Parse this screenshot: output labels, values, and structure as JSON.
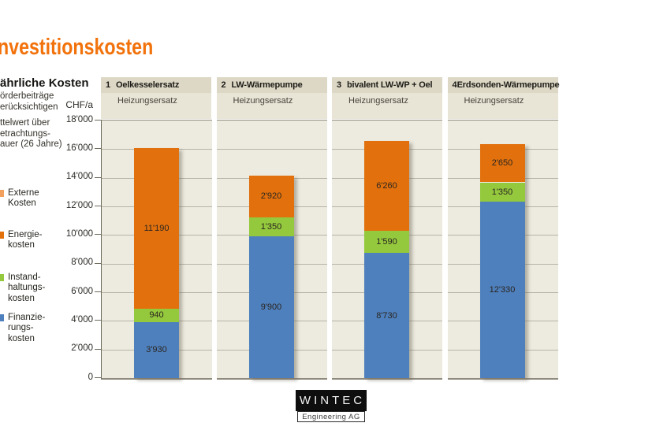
{
  "title": "nvestitionskosten",
  "sidebar": {
    "heading": "ährliche Kosten",
    "note1": [
      "örderbeiträge",
      "erücksichtigen"
    ],
    "note2": [
      "ttelwert über",
      "etrachtungs-",
      "auer (26 Jahre)"
    ]
  },
  "axis": {
    "unit_label": "CHF/a",
    "tick_labels": [
      "18'000",
      "16'000",
      "14'000",
      "12'000",
      "10'000",
      "8'000",
      "6'000",
      "4'000",
      "2'000",
      "0"
    ]
  },
  "legend": {
    "items": [
      {
        "id": "externe-kosten",
        "label_lines": [
          "Externe",
          "Kosten"
        ],
        "color": "#f2a05e"
      },
      {
        "id": "energiekosten",
        "label_lines": [
          "Energie-",
          "kosten"
        ],
        "color": "#e2710d"
      },
      {
        "id": "instandhaltungskosten",
        "label_lines": [
          "Instand-",
          "haltungs-",
          "kosten"
        ],
        "color": "#94c93d"
      },
      {
        "id": "finanzierungskosten",
        "label_lines": [
          "Finanzie-",
          "rungs-",
          "kosten"
        ],
        "color": "#4e80bd"
      }
    ]
  },
  "chart_data": {
    "type": "bar",
    "stacked": true,
    "unit": "CHF/a",
    "categories": [
      {
        "num": "1",
        "title": "Oelkesselersatz",
        "subtitle": "Heizungsersatz"
      },
      {
        "num": "2",
        "title": "LW-Wärmepumpe",
        "subtitle": "Heizungsersatz"
      },
      {
        "num": "3",
        "title": "bivalent LW-WP + Oel",
        "subtitle": "Heizungsersatz"
      },
      {
        "num": "4",
        "title": "Erdsonden-Wärmepumpe",
        "subtitle": "Heizungsersatz"
      }
    ],
    "series": [
      {
        "name": "Finanzierungskosten",
        "color": "#4e80bd",
        "values": [
          3930,
          9900,
          8730,
          12330
        ],
        "labels": [
          "3'930",
          "9'900",
          "8'730",
          "12'330"
        ]
      },
      {
        "name": "Instandhaltungskosten",
        "color": "#94c93d",
        "values": [
          940,
          1350,
          1590,
          1350
        ],
        "labels": [
          "940",
          "1'350",
          "1'590",
          "1'350"
        ]
      },
      {
        "name": "Energiekosten",
        "color": "#e2710d",
        "values": [
          11190,
          2920,
          6260,
          2650
        ],
        "labels": [
          "11'190",
          "2'920",
          "6'260",
          "2'650"
        ]
      },
      {
        "name": "Externe Kosten",
        "color": "#f2a05e",
        "values": [
          0,
          0,
          0,
          0
        ],
        "labels": [
          "",
          "",
          "",
          ""
        ]
      }
    ],
    "totals": [
      16060,
      14170,
      16580,
      16330
    ],
    "ylabel": "CHF/a",
    "ylim": [
      0,
      18000
    ],
    "ytick_interval": 2000,
    "grid": true,
    "legend_position": "left"
  },
  "logo": {
    "name": "WINTEC",
    "subtitle": "Engineering AG"
  },
  "colors": {
    "accent": "#f2720c",
    "plot_bg": "#edebe0",
    "header_row1_bg": "#ddd8c5",
    "header_row2_bg": "#e9e5d6",
    "gridline": "#b7b3a6"
  }
}
